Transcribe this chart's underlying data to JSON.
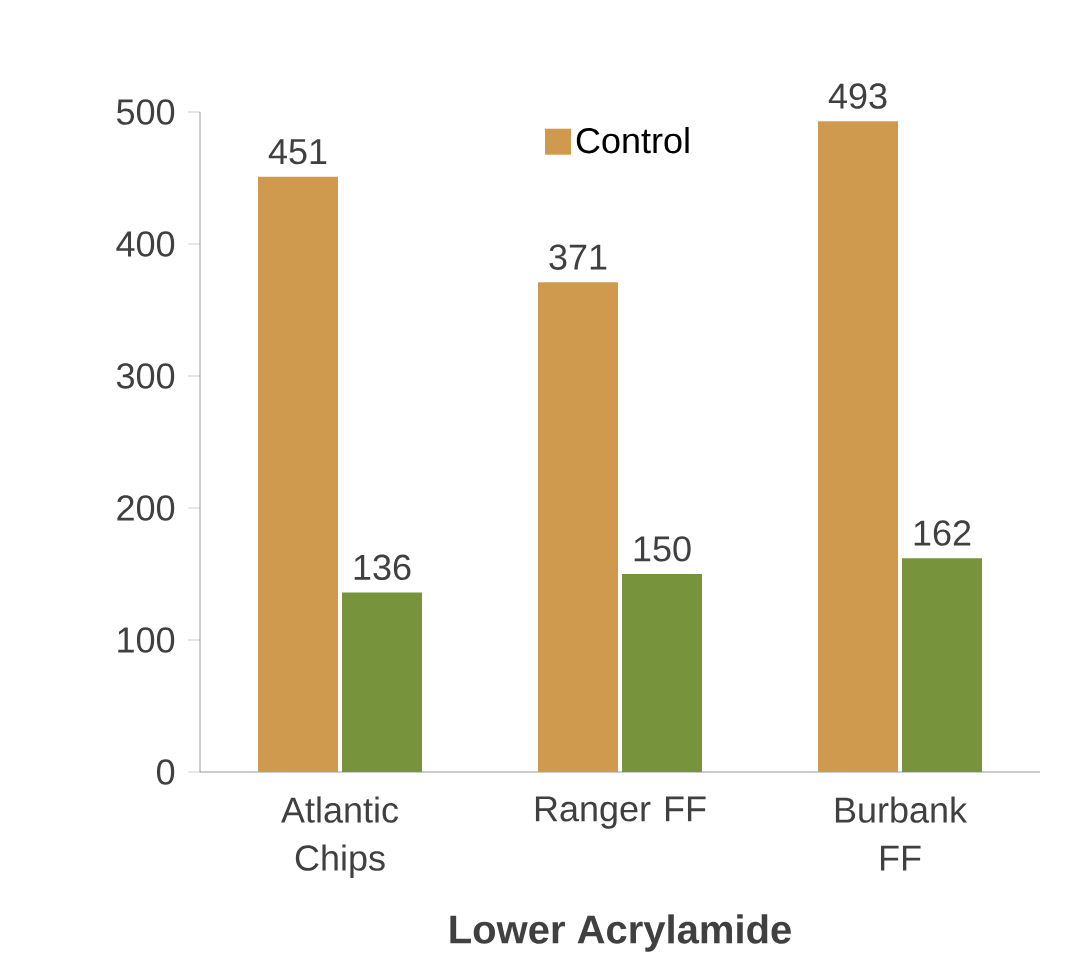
{
  "chart_data": {
    "type": "bar",
    "xlabel": "Lower Acrylamide",
    "categories": [
      "Atlantic Chips",
      "Ranger FF",
      "Burbank FF"
    ],
    "series": [
      {
        "name": "Control",
        "color": "#d09a4e",
        "values": [
          451,
          371,
          493
        ]
      },
      {
        "color": "#77933c",
        "values": [
          136,
          150,
          162
        ]
      }
    ],
    "ylim": [
      0,
      500
    ],
    "yticks": [
      0,
      100,
      200,
      300,
      400,
      500
    ],
    "data_labels": true,
    "grid": false,
    "legend": "top"
  }
}
